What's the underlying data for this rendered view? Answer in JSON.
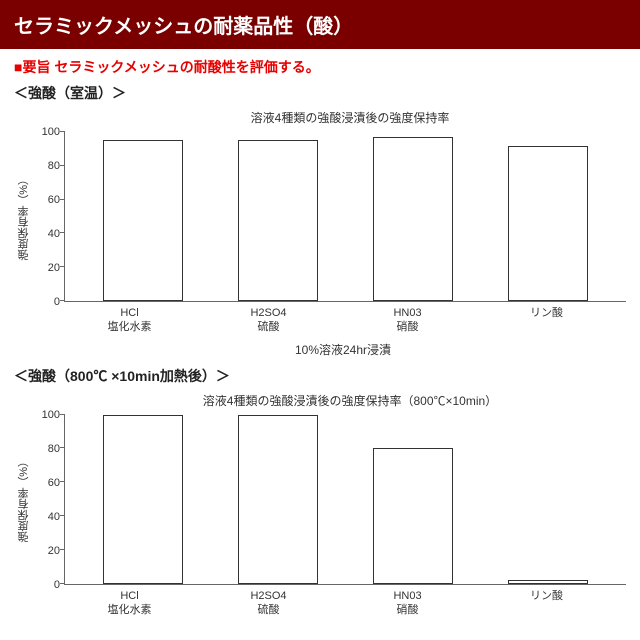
{
  "header": {
    "title": "セラミックメッシュの耐薬品性（酸）"
  },
  "summary": {
    "text": "■要旨 セラミックメッシュの耐酸性を評価する。"
  },
  "sections": [
    {
      "label": "＜強酸（室温）＞"
    },
    {
      "label": "＜強酸（800℃ ×10min加熱後）＞"
    }
  ],
  "chart1": {
    "type": "bar",
    "title": "溶液4種類の強酸浸漬後の強度保持率",
    "ylabel": "強度保有率（%）",
    "ylim": [
      0,
      100
    ],
    "yticks": [
      0,
      20,
      40,
      60,
      80,
      100
    ],
    "categories": [
      {
        "code": "HCl",
        "name": "塩化水素"
      },
      {
        "code": "H2SO4",
        "name": "硫酸"
      },
      {
        "code": "HN03",
        "name": "硝酸"
      },
      {
        "code": "",
        "name": "リン酸"
      }
    ],
    "values": [
      95,
      95,
      97,
      92
    ],
    "xaxis_label": "10%溶液24hr浸漬",
    "bar_fill": "#ffffff",
    "bar_border": "#333333",
    "axis_color": "#666666"
  },
  "chart2": {
    "type": "bar",
    "title": "溶液4種類の強酸浸漬後の強度保持率（800℃×10min）",
    "ylabel": "強度保有率（%）",
    "ylim": [
      0,
      100
    ],
    "yticks": [
      0,
      20,
      40,
      60,
      80,
      100
    ],
    "categories": [
      {
        "code": "HCl",
        "name": "塩化水素"
      },
      {
        "code": "H2SO4",
        "name": "硫酸"
      },
      {
        "code": "HN03",
        "name": "硝酸"
      },
      {
        "code": "",
        "name": "リン酸"
      }
    ],
    "values": [
      100,
      100,
      80,
      2
    ],
    "xaxis_label": "",
    "bar_fill": "#ffffff",
    "bar_border": "#333333",
    "axis_color": "#666666"
  }
}
